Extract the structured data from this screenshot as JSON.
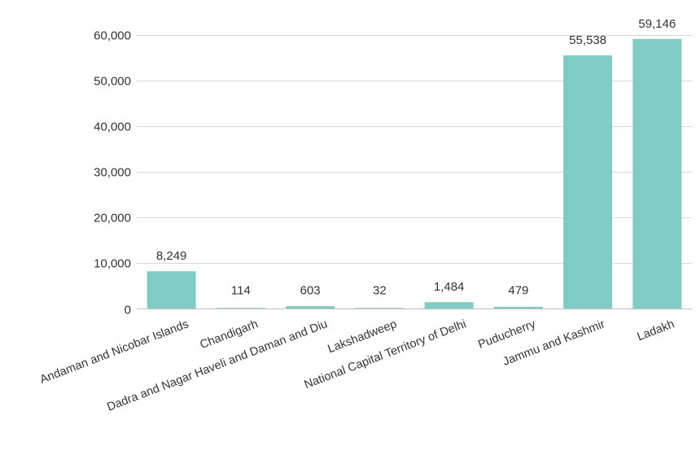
{
  "chart_data": {
    "type": "bar",
    "categories": [
      "Andaman and Nicobar Islands",
      "Chandigarh",
      "Dadra and Nagar Haveli and Daman and Diu",
      "Lakshadweep",
      "National Capital Territory of Delhi",
      "Puducherry",
      "Jammu and Kashmir",
      "Ladakh"
    ],
    "values": [
      8249,
      114,
      603,
      32,
      1484,
      479,
      55538,
      59146
    ],
    "data_labels": [
      "8,249",
      "114",
      "603",
      "32",
      "1,484",
      "479",
      "55,538",
      "59,146"
    ],
    "ylim": [
      0,
      60000
    ],
    "yticks": [
      0,
      10000,
      20000,
      30000,
      40000,
      50000,
      60000
    ],
    "ytick_labels": [
      "0",
      "10,000",
      "20,000",
      "30,000",
      "40,000",
      "50,000",
      "60,000"
    ],
    "grid": true,
    "bar_color": "#80cbc4",
    "grid_color": "#d9d9d9",
    "axis_color": "#bfbfbf"
  }
}
